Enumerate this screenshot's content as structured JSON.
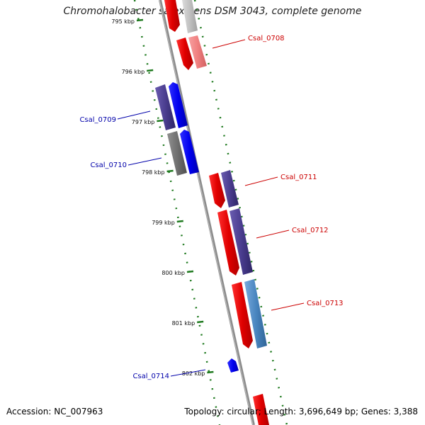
{
  "title": "Chromohalobacter salexigens DSM 3043, complete genome",
  "footer": {
    "accession": "Accession: NC_007963",
    "summary": "Topology: circular; Length: 3,696,649 bp; Genes: 3,388"
  },
  "ticks": [
    {
      "kbp": 795,
      "label": "795 kbp"
    },
    {
      "kbp": 796,
      "label": "796 kbp"
    },
    {
      "kbp": 797,
      "label": "797 kbp"
    },
    {
      "kbp": 798,
      "label": "798 kbp"
    },
    {
      "kbp": 799,
      "label": "799 kbp"
    },
    {
      "kbp": 800,
      "label": "800 kbp"
    },
    {
      "kbp": 801,
      "label": "801 kbp"
    },
    {
      "kbp": 802,
      "label": "802 kbp"
    }
  ],
  "labels": [
    {
      "text": "Csal_0708",
      "color": "#cc0000"
    },
    {
      "text": "Csal_0709",
      "color": "#0000aa"
    },
    {
      "text": "Csal_0710",
      "color": "#0000aa"
    },
    {
      "text": "Csal_0711",
      "color": "#cc0000"
    },
    {
      "text": "Csal_0712",
      "color": "#cc0000"
    },
    {
      "text": "Csal_0713",
      "color": "#cc0000"
    },
    {
      "text": "Csal_0714",
      "color": "#0000aa"
    }
  ],
  "colors": {
    "cds_forward": "#ff0000",
    "cds_reverse": "#0000ff",
    "feature_purple": "#4a3d8f",
    "feature_gray": "#707070",
    "feature_pink": "#f08080",
    "feature_lightgray": "#c0c0c0",
    "feature_steelblue": "#4a86c0",
    "tick_green": "#1f7a1f",
    "backbone": "#8c8c8c"
  }
}
